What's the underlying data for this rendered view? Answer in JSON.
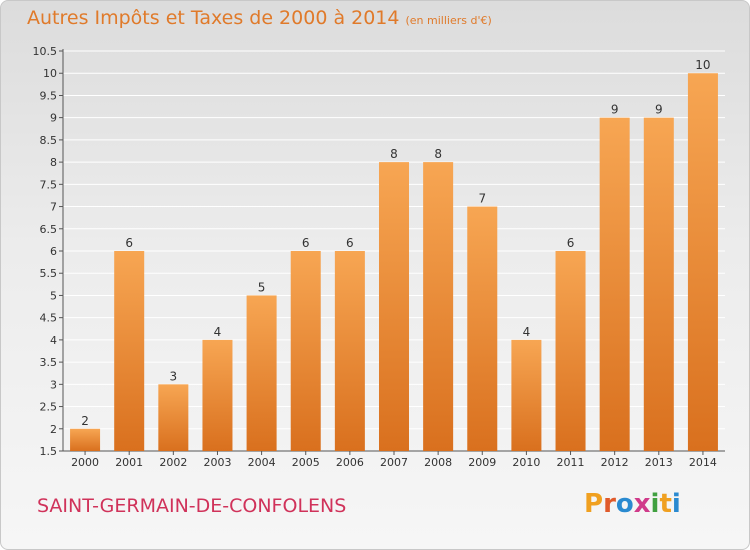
{
  "header": {
    "title": "Autres Impôts et Taxes de 2000 à 2014",
    "unit": "(en milliers d'€)"
  },
  "footer": {
    "commune": "SAINT-GERMAIN-DE-CONFOLENS"
  },
  "logo": {
    "text": "Proxiti",
    "letters": [
      {
        "char": "P",
        "color": "#f0a020"
      },
      {
        "char": "r",
        "color": "#e05a2a"
      },
      {
        "char": "o",
        "color": "#2a8ad0"
      },
      {
        "char": "x",
        "color": "#d03a8a"
      },
      {
        "char": "i",
        "color": "#40a040"
      },
      {
        "char": "t",
        "color": "#f0a020"
      },
      {
        "char": "i",
        "color": "#2a8ad0"
      }
    ]
  },
  "colors": {
    "bar_top": "#f7a653",
    "bar_bottom": "#d9701e",
    "accent": "#e07a2a",
    "commune": "#d0325a"
  },
  "chart_data": {
    "type": "bar",
    "categories": [
      "2000",
      "2001",
      "2002",
      "2003",
      "2004",
      "2005",
      "2006",
      "2007",
      "2008",
      "2009",
      "2010",
      "2011",
      "2012",
      "2013",
      "2014"
    ],
    "values": [
      2,
      6,
      3,
      4,
      5,
      6,
      6,
      8,
      8,
      7,
      4,
      6,
      9,
      9,
      10
    ],
    "ylim": [
      1.5,
      10.5
    ],
    "yticks": [
      "1.5",
      "2",
      "2.5",
      "3",
      "3.5",
      "4",
      "4.5",
      "5",
      "5.5",
      "6",
      "6.5",
      "7",
      "7.5",
      "8",
      "8.5",
      "9",
      "9.5",
      "10",
      "10.5"
    ],
    "grid": true,
    "data_labels": [
      "2",
      "6",
      "3",
      "4",
      "5",
      "6",
      "6",
      "8",
      "8",
      "7",
      "4",
      "6",
      "9",
      "9",
      "10"
    ]
  }
}
